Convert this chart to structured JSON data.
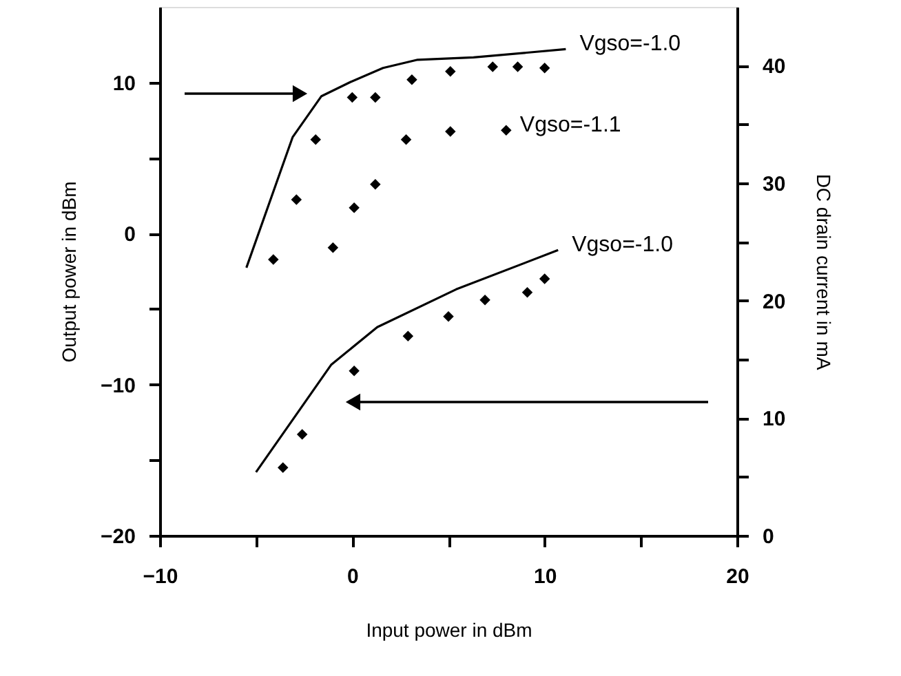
{
  "chart_data": {
    "type": "line",
    "xlabel": "Input power in dBm",
    "ylabel": "Output power in dBm",
    "y2label": "DC drain current in mA",
    "xlim": [
      -10,
      20
    ],
    "xticks": [
      -10,
      {
        "value": -5,
        "label": null
      },
      0,
      {
        "value": 5,
        "label": null
      },
      10,
      {
        "value": 15,
        "label": null
      },
      20
    ],
    "ylim": [
      -20,
      15
    ],
    "yticks": [
      -20,
      {
        "value": -15,
        "label": null
      },
      -10,
      {
        "value": -5,
        "label": null
      },
      0,
      {
        "value": 5,
        "label": null
      },
      10
    ],
    "y2lim": [
      0,
      45
    ],
    "y2ticks": [
      0,
      {
        "value": 5,
        "label": null
      },
      10,
      {
        "value": 15,
        "label": null
      },
      20,
      {
        "value": 25,
        "label": null
      },
      30,
      {
        "value": 35,
        "label": null
      },
      40
    ],
    "grid": false,
    "series": [
      {
        "name": "Vgso=-1.0",
        "axis": "y2",
        "color": "#000000",
        "marker": "none",
        "x": [
          -5.5,
          -3.1,
          -1.6,
          -0.1,
          1.6,
          3.4,
          6.3,
          11.1
        ],
        "values": [
          22.8,
          33.9,
          37.4,
          38.6,
          39.8,
          40.5,
          40.7,
          41.4
        ]
      },
      {
        "type": "scatter",
        "axis": "y2",
        "color": "#000000",
        "marker": "diamond",
        "x": [
          -1.9,
          0,
          1.2,
          3.1,
          5.1,
          7.3,
          8.6,
          10
        ],
        "values": [
          33.7,
          37.3,
          37.3,
          38.8,
          39.5,
          39.9,
          39.9,
          39.8
        ]
      },
      {
        "name": "Vgso=-1.1",
        "type": "scatter",
        "axis": "y2",
        "color": "#000000",
        "marker": "diamond",
        "x": [
          -4.1,
          -2.9,
          -1,
          0.1,
          1.2,
          2.8,
          5.1,
          8
        ],
        "values": [
          23.5,
          28.6,
          24.5,
          27.9,
          29.9,
          33.7,
          34.4,
          34.5
        ]
      },
      {
        "name": "Vgso=-1.0",
        "color": "#000000",
        "marker": "none",
        "x": [
          -5,
          -1.1,
          1.3,
          5.4,
          10.7
        ],
        "values": [
          -15.8,
          -8.7,
          -6.2,
          -3.7,
          -1.1
        ]
      },
      {
        "type": "scatter",
        "color": "#000000",
        "marker": "diamond",
        "x": [
          -3.6,
          -2.6,
          0.1,
          2.9,
          5,
          6.9,
          9.1,
          10
        ],
        "values": [
          -15.5,
          -13.3,
          -9.1,
          -6.8,
          -5.5,
          -4.4,
          -3.9,
          -3.0
        ]
      }
    ]
  }
}
